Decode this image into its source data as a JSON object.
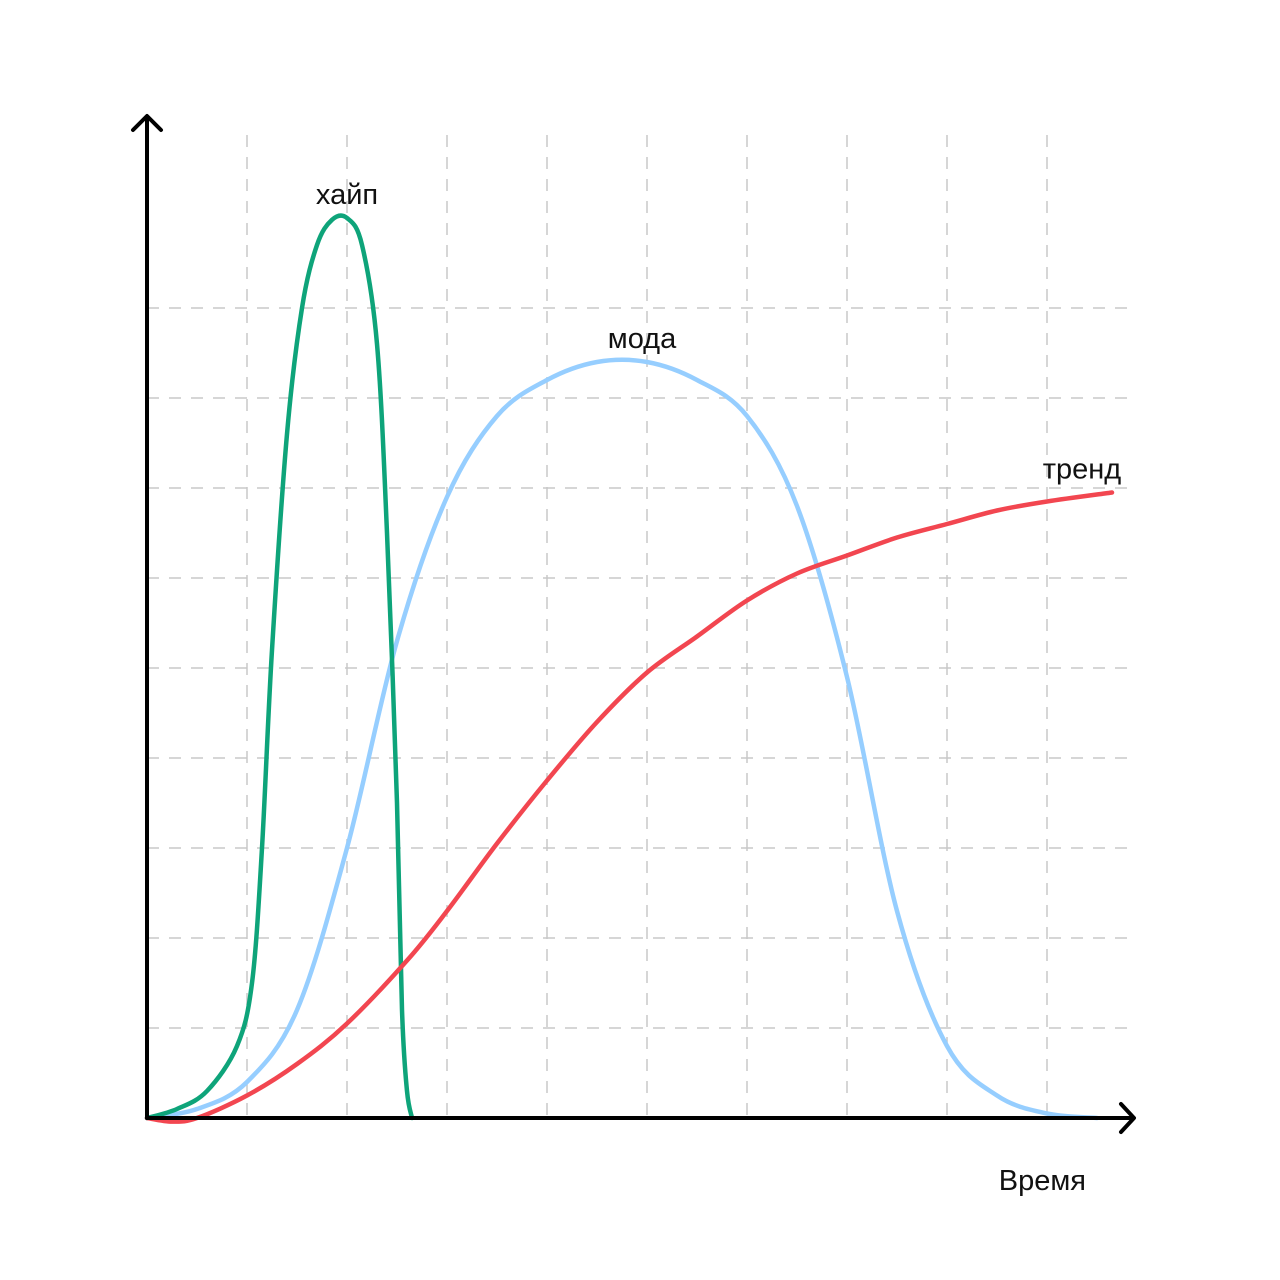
{
  "chart_data": {
    "type": "line",
    "title": "",
    "xlabel": "Время",
    "ylabel": "",
    "xlim": [
      0,
      10
    ],
    "ylim": [
      0,
      10
    ],
    "grid": true,
    "series": [
      {
        "name": "хайп",
        "color": "#0ea47a",
        "x": [
          0.0,
          0.3,
          0.6,
          0.9,
          1.05,
          1.15,
          1.25,
          1.4,
          1.55,
          1.7,
          1.85,
          2.0,
          2.15,
          2.3,
          2.4,
          2.5,
          2.55,
          2.6,
          2.65
        ],
        "y": [
          0.0,
          0.1,
          0.3,
          0.8,
          1.5,
          3.0,
          5.2,
          7.6,
          9.0,
          9.7,
          9.98,
          10.0,
          9.7,
          8.6,
          6.5,
          3.5,
          1.2,
          0.3,
          0.0
        ]
      },
      {
        "name": "мода",
        "color": "#96ceff",
        "x": [
          0.0,
          0.5,
          1.0,
          1.5,
          2.0,
          2.5,
          3.0,
          3.5,
          4.0,
          4.5,
          5.0,
          5.5,
          6.0,
          6.5,
          7.0,
          7.5,
          8.0,
          8.5,
          9.0,
          9.5
        ],
        "y": [
          0.0,
          0.1,
          0.4,
          1.2,
          3.0,
          5.3,
          6.9,
          7.8,
          8.2,
          8.4,
          8.4,
          8.2,
          7.8,
          6.8,
          4.9,
          2.3,
          0.8,
          0.25,
          0.05,
          0.0
        ]
      },
      {
        "name": "тренд",
        "color": "#f24650",
        "x": [
          0.0,
          0.25,
          0.5,
          1.0,
          1.5,
          2.0,
          2.6,
          3.0,
          3.5,
          4.0,
          4.5,
          5.0,
          5.5,
          6.0,
          6.5,
          7.0,
          7.5,
          8.0,
          8.5,
          9.0,
          9.65
        ],
        "y": [
          0.0,
          -0.04,
          0.0,
          0.25,
          0.6,
          1.05,
          1.75,
          2.3,
          3.05,
          3.75,
          4.4,
          4.95,
          5.35,
          5.75,
          6.05,
          6.25,
          6.45,
          6.6,
          6.75,
          6.85,
          6.95
        ]
      }
    ],
    "annotations": [
      {
        "text": "хайп",
        "x": 2.0,
        "y": 10.0
      },
      {
        "text": "мода",
        "x": 4.95,
        "y": 8.4
      },
      {
        "text": "тренд",
        "x": 9.25,
        "y": 6.95
      }
    ]
  }
}
